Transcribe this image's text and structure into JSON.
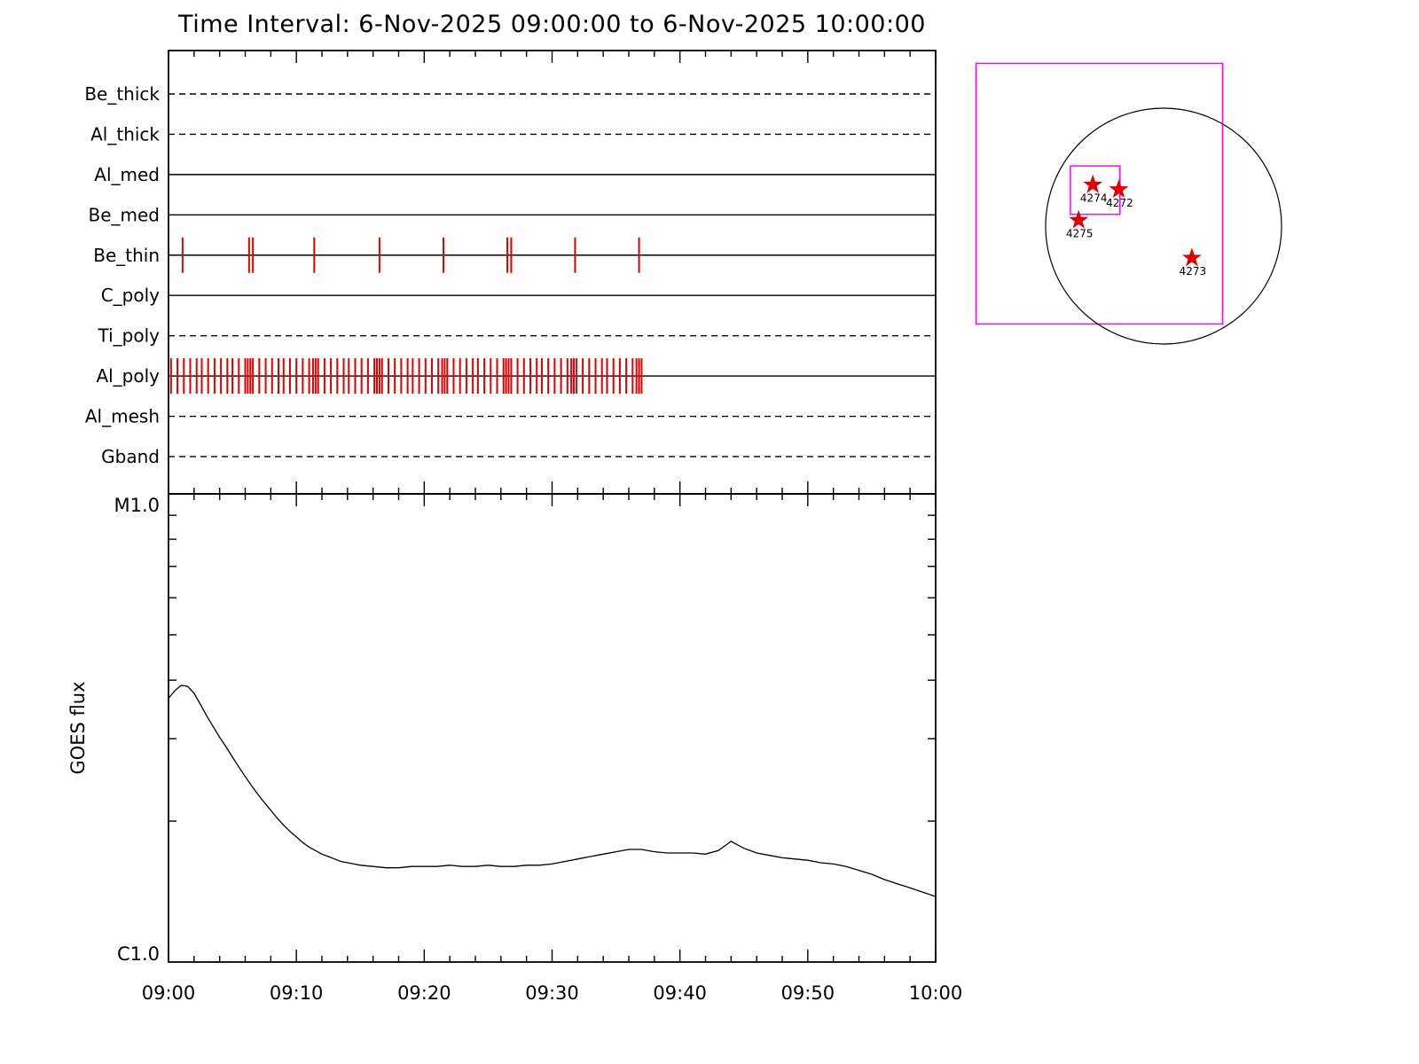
{
  "chart_data": [
    {
      "type": "timeline",
      "name": "xrt-observation-timeline",
      "title": "Time Interval:  6-Nov-2025 09:00:00 to  6-Nov-2025 10:00:00",
      "x_start_label": "09:00",
      "x_end_label": "10:00",
      "x_range_minutes": [
        0,
        60
      ],
      "exposure_color": "#dd0000",
      "rows": [
        {
          "label": "Be_thick",
          "line_style": "dashed",
          "exposures_min": []
        },
        {
          "label": "Al_thick",
          "line_style": "dashed",
          "exposures_min": []
        },
        {
          "label": "Al_med",
          "line_style": "solid",
          "exposures_min": []
        },
        {
          "label": "Be_med",
          "line_style": "solid",
          "exposures_min": []
        },
        {
          "label": "Be_thin",
          "line_style": "solid",
          "exposures_min": [
            1.1,
            6.3,
            6.6,
            11.4,
            16.5,
            21.5,
            26.5,
            26.8,
            31.8,
            36.8
          ]
        },
        {
          "label": "C_poly",
          "line_style": "solid",
          "exposures_min": []
        },
        {
          "label": "Ti_poly",
          "line_style": "dashed",
          "exposures_min": []
        },
        {
          "label": "Al_poly",
          "line_style": "solid",
          "exposures_min": [
            0.2,
            0.7,
            1.2,
            1.7,
            2.2,
            2.6,
            3.1,
            3.6,
            4.1,
            4.6,
            5.0,
            5.5,
            6.0,
            6.2,
            6.4,
            6.6,
            7.1,
            7.6,
            8.1,
            8.6,
            9.0,
            9.5,
            10.0,
            10.5,
            11.0,
            11.3,
            11.5,
            11.7,
            12.2,
            12.7,
            13.2,
            13.7,
            14.1,
            14.6,
            15.1,
            15.6,
            16.1,
            16.3,
            16.5,
            16.7,
            17.2,
            17.7,
            18.2,
            18.7,
            19.1,
            19.6,
            20.1,
            20.6,
            21.1,
            21.4,
            21.6,
            21.8,
            22.3,
            22.8,
            23.3,
            23.8,
            24.2,
            24.7,
            25.2,
            25.7,
            26.2,
            26.4,
            26.6,
            26.8,
            27.3,
            27.8,
            28.3,
            28.8,
            29.2,
            29.7,
            30.2,
            30.7,
            31.2,
            31.5,
            31.7,
            31.9,
            32.4,
            32.9,
            33.4,
            33.9,
            34.3,
            34.8,
            35.3,
            35.8,
            36.3,
            36.6,
            36.8,
            37.0
          ]
        },
        {
          "label": "Al_mesh",
          "line_style": "dashed",
          "exposures_min": []
        },
        {
          "label": "Gband",
          "line_style": "dashed",
          "exposures_min": []
        }
      ]
    },
    {
      "type": "line",
      "name": "goes-flux",
      "ylabel": "GOES flux",
      "yscale": "log",
      "y_top_label": "M1.0",
      "y_bottom_label": "C1.0",
      "ylim_c_units": [
        1,
        10
      ],
      "x_tick_labels": [
        "09:00",
        "09:10",
        "09:20",
        "09:30",
        "09:40",
        "09:50",
        "10:00"
      ],
      "x_tick_minutes": [
        0,
        10,
        20,
        30,
        40,
        50,
        60
      ],
      "points_min_cunits": [
        [
          0,
          3.66
        ],
        [
          0.5,
          3.8
        ],
        [
          1,
          3.9
        ],
        [
          1.5,
          3.88
        ],
        [
          2,
          3.75
        ],
        [
          2.5,
          3.55
        ],
        [
          3,
          3.35
        ],
        [
          3.5,
          3.18
        ],
        [
          4,
          3.02
        ],
        [
          4.5,
          2.88
        ],
        [
          5,
          2.74
        ],
        [
          5.5,
          2.61
        ],
        [
          6,
          2.49
        ],
        [
          6.5,
          2.38
        ],
        [
          7,
          2.28
        ],
        [
          7.5,
          2.19
        ],
        [
          8,
          2.11
        ],
        [
          8.5,
          2.03
        ],
        [
          9,
          1.96
        ],
        [
          9.5,
          1.9
        ],
        [
          10,
          1.85
        ],
        [
          10.5,
          1.8
        ],
        [
          11,
          1.76
        ],
        [
          11.5,
          1.73
        ],
        [
          12,
          1.7
        ],
        [
          12.5,
          1.68
        ],
        [
          13,
          1.66
        ],
        [
          13.5,
          1.64
        ],
        [
          14,
          1.63
        ],
        [
          14.5,
          1.62
        ],
        [
          15,
          1.61
        ],
        [
          16,
          1.6
        ],
        [
          17,
          1.59
        ],
        [
          18,
          1.59
        ],
        [
          19,
          1.6
        ],
        [
          20,
          1.6
        ],
        [
          21,
          1.6
        ],
        [
          22,
          1.61
        ],
        [
          23,
          1.6
        ],
        [
          24,
          1.6
        ],
        [
          25,
          1.61
        ],
        [
          26,
          1.6
        ],
        [
          27,
          1.6
        ],
        [
          28,
          1.61
        ],
        [
          29,
          1.61
        ],
        [
          30,
          1.62
        ],
        [
          31,
          1.64
        ],
        [
          32,
          1.66
        ],
        [
          33,
          1.68
        ],
        [
          34,
          1.7
        ],
        [
          35,
          1.72
        ],
        [
          36,
          1.74
        ],
        [
          37,
          1.74
        ],
        [
          38,
          1.72
        ],
        [
          39,
          1.71
        ],
        [
          40,
          1.71
        ],
        [
          41,
          1.71
        ],
        [
          42,
          1.7
        ],
        [
          43,
          1.73
        ],
        [
          43.5,
          1.77
        ],
        [
          44,
          1.81
        ],
        [
          44.5,
          1.78
        ],
        [
          45,
          1.75
        ],
        [
          46,
          1.71
        ],
        [
          47,
          1.69
        ],
        [
          48,
          1.67
        ],
        [
          49,
          1.66
        ],
        [
          50,
          1.65
        ],
        [
          51,
          1.63
        ],
        [
          52,
          1.62
        ],
        [
          53,
          1.6
        ],
        [
          54,
          1.57
        ],
        [
          55,
          1.54
        ],
        [
          56,
          1.5
        ],
        [
          57,
          1.47
        ],
        [
          58,
          1.44
        ],
        [
          59,
          1.41
        ],
        [
          60,
          1.38
        ]
      ]
    },
    {
      "type": "scatter",
      "name": "solar-disk-map",
      "disk_color": "#000000",
      "fov_color": "#ff00ff",
      "star_color": "#dd0000",
      "fov_boxes_solar_radii": [
        {
          "x1": -1.59,
          "y1": -1.38,
          "x2": 0.5,
          "y2": 0.83
        },
        {
          "x1": -0.79,
          "y1": -0.51,
          "x2": -0.37,
          "y2": -0.1
        }
      ],
      "active_regions": [
        {
          "label": "4274",
          "x": -0.6,
          "y": -0.35
        },
        {
          "label": "4272",
          "x": -0.38,
          "y": -0.31
        },
        {
          "label": "4275",
          "x": -0.72,
          "y": -0.05
        },
        {
          "label": "4273",
          "x": 0.24,
          "y": 0.27
        }
      ]
    }
  ]
}
